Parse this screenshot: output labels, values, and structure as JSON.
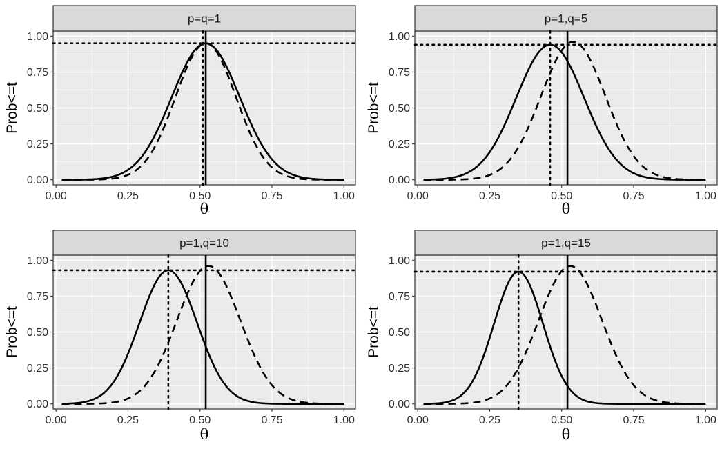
{
  "figure": {
    "colors": {
      "panel_bg": "#EBEBEB",
      "grid": "#FFFFFF",
      "strip_bg": "#D9D9D9",
      "strip_border": "#333333",
      "line": "#000000",
      "tick_text": "#303030"
    }
  },
  "chart_data": [
    {
      "type": "line",
      "title": "p=q=1",
      "xlabel": "θ",
      "ylabel": "Prob<=t",
      "xlim": [
        -0.01,
        1.04
      ],
      "ylim": [
        -0.035,
        1.035
      ],
      "x_ticks": [
        0,
        0.25,
        0.5,
        0.75,
        1
      ],
      "x_tick_labels": [
        "0.00",
        "0.25",
        "0.50",
        "0.75",
        "1.00"
      ],
      "y_ticks": [
        0,
        0.25,
        0.5,
        0.75,
        1
      ],
      "y_tick_labels": [
        "0.00",
        "0.25",
        "0.50",
        "0.75",
        "1.00"
      ],
      "series": [
        {
          "name": "solid",
          "style": "solid",
          "shape": "gaussian",
          "peak_x": 0.52,
          "peak_y": 0.95,
          "sd": 0.118,
          "x_range": [
            0.02,
            1.0
          ]
        },
        {
          "name": "dashed",
          "style": "dashed",
          "shape": "gaussian",
          "peak_x": 0.52,
          "peak_y": 0.95,
          "sd": 0.105,
          "x_range": [
            0.02,
            1.0
          ]
        }
      ],
      "vlines": [
        {
          "x": 0.51,
          "style": "dotted"
        },
        {
          "x": 0.52,
          "style": "solid"
        }
      ],
      "hline": {
        "y": 0.95,
        "style": "dotted"
      }
    },
    {
      "type": "line",
      "title": "p=1,q=5",
      "xlabel": "θ",
      "ylabel": "Prob<=t",
      "xlim": [
        -0.01,
        1.04
      ],
      "ylim": [
        -0.035,
        1.035
      ],
      "x_ticks": [
        0,
        0.25,
        0.5,
        0.75,
        1
      ],
      "x_tick_labels": [
        "0.00",
        "0.25",
        "0.50",
        "0.75",
        "1.00"
      ],
      "y_ticks": [
        0,
        0.25,
        0.5,
        0.75,
        1
      ],
      "y_tick_labels": [
        "0.00",
        "0.25",
        "0.50",
        "0.75",
        "1.00"
      ],
      "series": [
        {
          "name": "solid",
          "style": "solid",
          "shape": "gaussian",
          "peak_x": 0.46,
          "peak_y": 0.94,
          "sd": 0.118,
          "x_range": [
            0.02,
            1.0
          ]
        },
        {
          "name": "dashed",
          "style": "dashed",
          "shape": "gaussian",
          "peak_x": 0.54,
          "peak_y": 0.96,
          "sd": 0.112,
          "x_range": [
            0.02,
            1.0
          ]
        }
      ],
      "vlines": [
        {
          "x": 0.46,
          "style": "dotted"
        },
        {
          "x": 0.52,
          "style": "solid"
        }
      ],
      "hline": {
        "y": 0.94,
        "style": "dotted"
      }
    },
    {
      "type": "line",
      "title": "p=1,q=10",
      "xlabel": "θ",
      "ylabel": "Prob<=t",
      "xlim": [
        -0.01,
        1.04
      ],
      "ylim": [
        -0.035,
        1.035
      ],
      "x_ticks": [
        0,
        0.25,
        0.5,
        0.75,
        1
      ],
      "x_tick_labels": [
        "0.00",
        "0.25",
        "0.50",
        "0.75",
        "1.00"
      ],
      "y_ticks": [
        0,
        0.25,
        0.5,
        0.75,
        1
      ],
      "y_tick_labels": [
        "0.00",
        "0.25",
        "0.50",
        "0.75",
        "1.00"
      ],
      "series": [
        {
          "name": "solid",
          "style": "solid",
          "shape": "gaussian",
          "peak_x": 0.39,
          "peak_y": 0.93,
          "sd": 0.1,
          "x_range": [
            0.02,
            1.0
          ]
        },
        {
          "name": "dashed",
          "style": "dashed",
          "shape": "gaussian",
          "peak_x": 0.53,
          "peak_y": 0.96,
          "sd": 0.11,
          "x_range": [
            0.02,
            1.0
          ]
        }
      ],
      "vlines": [
        {
          "x": 0.39,
          "style": "dotted"
        },
        {
          "x": 0.52,
          "style": "solid"
        }
      ],
      "hline": {
        "y": 0.93,
        "style": "dotted"
      }
    },
    {
      "type": "line",
      "title": "p=1,q=15",
      "xlabel": "θ",
      "ylabel": "Prob<=t",
      "xlim": [
        -0.01,
        1.04
      ],
      "ylim": [
        -0.035,
        1.035
      ],
      "x_ticks": [
        0,
        0.25,
        0.5,
        0.75,
        1
      ],
      "x_tick_labels": [
        "0.00",
        "0.25",
        "0.50",
        "0.75",
        "1.00"
      ],
      "y_ticks": [
        0,
        0.25,
        0.5,
        0.75,
        1
      ],
      "y_tick_labels": [
        "0.00",
        "0.25",
        "0.50",
        "0.75",
        "1.00"
      ],
      "series": [
        {
          "name": "solid",
          "style": "solid",
          "shape": "gaussian",
          "peak_x": 0.35,
          "peak_y": 0.92,
          "sd": 0.085,
          "x_range": [
            0.02,
            1.0
          ]
        },
        {
          "name": "dashed",
          "style": "dashed",
          "shape": "gaussian",
          "peak_x": 0.53,
          "peak_y": 0.96,
          "sd": 0.11,
          "x_range": [
            0.02,
            1.0
          ]
        }
      ],
      "vlines": [
        {
          "x": 0.35,
          "style": "dotted"
        },
        {
          "x": 0.52,
          "style": "solid"
        }
      ],
      "hline": {
        "y": 0.92,
        "style": "dotted"
      }
    }
  ]
}
